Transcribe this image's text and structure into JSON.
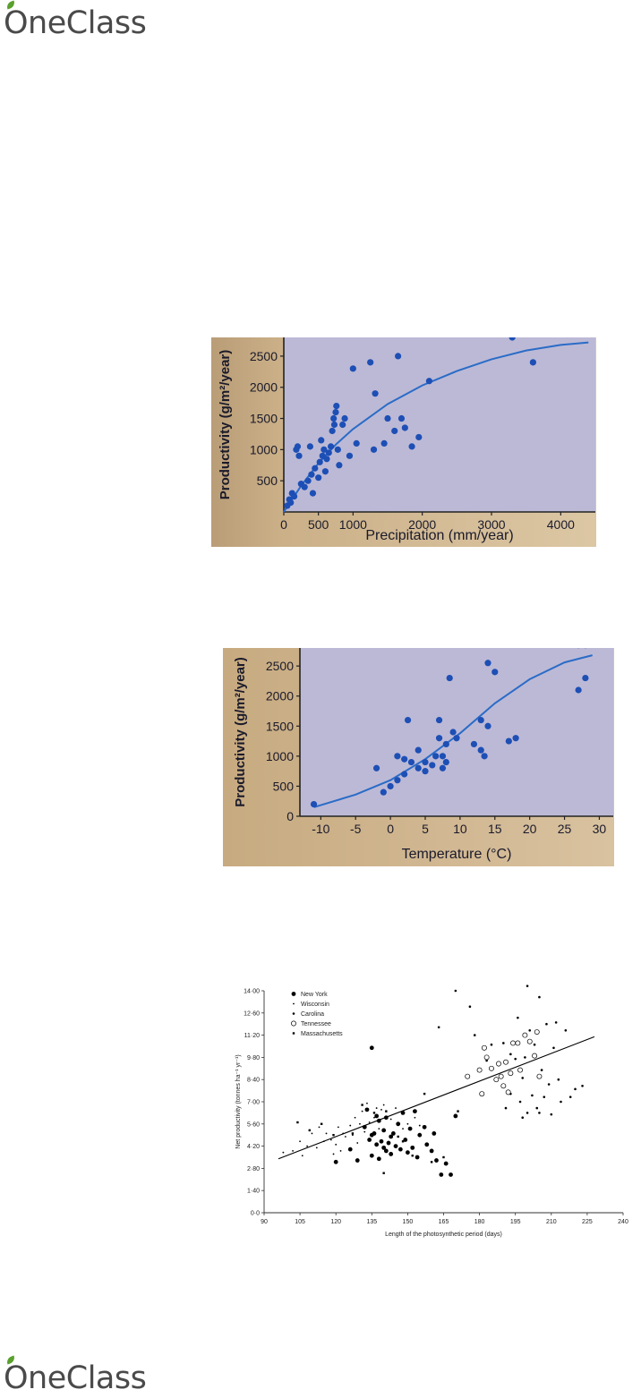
{
  "brand": {
    "name": "OneClass",
    "leaf_color": "#5aa02c",
    "text_color": "#4a4a4a"
  },
  "chart_data": [
    {
      "type": "scatter",
      "title": "",
      "xlabel": "Precipitation (mm/year)",
      "ylabel": "Productivity (g/m²/year)",
      "xlim": [
        0,
        4500
      ],
      "ylim": [
        0,
        2800
      ],
      "xticks": [
        0,
        500,
        1000,
        2000,
        3000,
        4000
      ],
      "yticks": [
        500,
        1000,
        1500,
        2000,
        2500
      ],
      "grid": false,
      "plot_bg": "#bcb9d6",
      "point_color": "#1d4fb5",
      "line_color": "#2a6cc7",
      "points": [
        [
          50,
          100
        ],
        [
          80,
          200
        ],
        [
          100,
          150
        ],
        [
          120,
          300
        ],
        [
          150,
          250
        ],
        [
          180,
          1000
        ],
        [
          200,
          1050
        ],
        [
          220,
          900
        ],
        [
          250,
          450
        ],
        [
          300,
          400
        ],
        [
          350,
          500
        ],
        [
          380,
          1050
        ],
        [
          400,
          600
        ],
        [
          420,
          300
        ],
        [
          450,
          700
        ],
        [
          500,
          550
        ],
        [
          520,
          800
        ],
        [
          540,
          1150
        ],
        [
          560,
          900
        ],
        [
          580,
          1000
        ],
        [
          600,
          650
        ],
        [
          620,
          850
        ],
        [
          650,
          950
        ],
        [
          680,
          1050
        ],
        [
          700,
          1300
        ],
        [
          720,
          1500
        ],
        [
          730,
          1400
        ],
        [
          750,
          1600
        ],
        [
          760,
          1700
        ],
        [
          780,
          1000
        ],
        [
          800,
          750
        ],
        [
          850,
          1400
        ],
        [
          880,
          1500
        ],
        [
          950,
          900
        ],
        [
          1000,
          2300
        ],
        [
          1050,
          1100
        ],
        [
          1250,
          2400
        ],
        [
          1300,
          1000
        ],
        [
          1320,
          1900
        ],
        [
          1450,
          1100
        ],
        [
          1500,
          1500
        ],
        [
          1600,
          1300
        ],
        [
          1650,
          2500
        ],
        [
          1700,
          1500
        ],
        [
          1750,
          1350
        ],
        [
          1850,
          1050
        ],
        [
          1950,
          1200
        ],
        [
          2100,
          2100
        ],
        [
          3300,
          2800
        ],
        [
          3600,
          2400
        ]
      ],
      "fit": [
        [
          0,
          0
        ],
        [
          250,
          420
        ],
        [
          500,
          780
        ],
        [
          750,
          1080
        ],
        [
          1000,
          1330
        ],
        [
          1500,
          1730
        ],
        [
          2000,
          2030
        ],
        [
          2500,
          2260
        ],
        [
          3000,
          2450
        ],
        [
          3500,
          2590
        ],
        [
          4000,
          2680
        ],
        [
          4400,
          2720
        ]
      ]
    },
    {
      "type": "scatter",
      "title": "",
      "xlabel": "Temperature (°C)",
      "ylabel": "Productivity (g/m²/year)",
      "xlim": [
        -13,
        32
      ],
      "ylim": [
        0,
        2800
      ],
      "xticks": [
        -10,
        -5,
        0,
        5,
        10,
        15,
        20,
        25,
        30
      ],
      "yticks": [
        0,
        500,
        1000,
        1500,
        2000,
        2500
      ],
      "grid": false,
      "plot_bg": "#bcb9d6",
      "point_color": "#1d4fb5",
      "line_color": "#2a6cc7",
      "points": [
        [
          -11,
          200
        ],
        [
          -2,
          800
        ],
        [
          -1,
          400
        ],
        [
          0,
          500
        ],
        [
          1,
          600
        ],
        [
          1,
          1000
        ],
        [
          2,
          950
        ],
        [
          2,
          700
        ],
        [
          2.5,
          1600
        ],
        [
          3,
          900
        ],
        [
          4,
          1100
        ],
        [
          4,
          800
        ],
        [
          5,
          750
        ],
        [
          5,
          900
        ],
        [
          6,
          850
        ],
        [
          6.5,
          1000
        ],
        [
          7,
          1300
        ],
        [
          7,
          1600
        ],
        [
          7.5,
          1000
        ],
        [
          7.5,
          800
        ],
        [
          8,
          1200
        ],
        [
          8,
          900
        ],
        [
          8.5,
          2300
        ],
        [
          9,
          1400
        ],
        [
          9.5,
          1300
        ],
        [
          12,
          1200
        ],
        [
          13,
          1600
        ],
        [
          13,
          1100
        ],
        [
          13.5,
          1000
        ],
        [
          14,
          2550
        ],
        [
          14,
          1500
        ],
        [
          15,
          2400
        ],
        [
          17,
          1250
        ],
        [
          18,
          1300
        ],
        [
          27,
          2100
        ],
        [
          27,
          2850
        ],
        [
          28,
          2300
        ],
        [
          28,
          2850
        ]
      ],
      "fit": [
        [
          -11,
          150
        ],
        [
          -5,
          360
        ],
        [
          0,
          600
        ],
        [
          5,
          950
        ],
        [
          10,
          1380
        ],
        [
          15,
          1880
        ],
        [
          20,
          2280
        ],
        [
          25,
          2560
        ],
        [
          29,
          2680
        ]
      ]
    },
    {
      "type": "scatter",
      "title": "",
      "xlabel": "Length of the photosynthetic period (days)",
      "ylabel": "Net productivity (tonnes ha⁻¹ yr⁻¹)",
      "xlim": [
        90,
        240
      ],
      "ylim": [
        0,
        14
      ],
      "xticks": [
        "90",
        "105",
        "120",
        "135",
        "150",
        "165",
        "180",
        "195",
        "210",
        "225",
        "240"
      ],
      "yticks": [
        "0·0",
        "1·40",
        "2·80",
        "4·20",
        "5·60",
        "7·00",
        "8·40",
        "9·80",
        "11·20",
        "12·60",
        "14·00"
      ],
      "grid": false,
      "legend": {
        "position": "top-left"
      },
      "line_color": "#000000",
      "fit": [
        [
          96,
          3.4
        ],
        [
          228,
          11.1
        ]
      ],
      "series": [
        {
          "name": "New York",
          "marker": "big-dot",
          "points": [
            [
              132,
              5.4
            ],
            [
              134,
              4.6
            ],
            [
              135,
              4.9
            ],
            [
              135,
              3.6
            ],
            [
              136,
              5.0
            ],
            [
              137,
              4.3
            ],
            [
              137,
              6.1
            ],
            [
              138,
              3.4
            ],
            [
              138,
              5.8
            ],
            [
              139,
              4.5
            ],
            [
              140,
              4.1
            ],
            [
              140,
              5.2
            ],
            [
              141,
              3.9
            ],
            [
              141,
              6.0
            ],
            [
              142,
              4.4
            ],
            [
              143,
              4.8
            ],
            [
              143,
              3.7
            ],
            [
              144,
              5.0
            ],
            [
              145,
              4.2
            ],
            [
              146,
              5.6
            ],
            [
              147,
              4.0
            ],
            [
              148,
              6.3
            ],
            [
              149,
              4.6
            ],
            [
              150,
              3.8
            ],
            [
              151,
              5.3
            ],
            [
              152,
              4.1
            ],
            [
              153,
              6.4
            ],
            [
              154,
              3.5
            ],
            [
              155,
              4.9
            ],
            [
              157,
              5.4
            ],
            [
              158,
              4.3
            ],
            [
              160,
              3.9
            ],
            [
              161,
              5.0
            ],
            [
              162,
              3.3
            ],
            [
              164,
              2.4
            ],
            [
              166,
              3.1
            ],
            [
              168,
              2.4
            ],
            [
              170,
              6.1
            ],
            [
              135,
              10.4
            ],
            [
              129,
              3.3
            ],
            [
              133,
              6.5
            ],
            [
              126,
              4.0
            ],
            [
              120,
              3.2
            ]
          ]
        },
        {
          "name": "Wisconsin",
          "marker": "small-dot",
          "points": [
            [
              98,
              3.8
            ],
            [
              102,
              3.9
            ],
            [
              105,
              4.5
            ],
            [
              106,
              3.6
            ],
            [
              108,
              4.2
            ],
            [
              110,
              5.0
            ],
            [
              112,
              4.1
            ],
            [
              113,
              5.4
            ],
            [
              115,
              4.5
            ],
            [
              116,
              5.0
            ],
            [
              118,
              4.6
            ],
            [
              119,
              3.7
            ],
            [
              120,
              4.3
            ],
            [
              121,
              5.4
            ],
            [
              122,
              3.9
            ],
            [
              123,
              5.0
            ],
            [
              124,
              4.8
            ],
            [
              126,
              5.5
            ],
            [
              127,
              4.9
            ],
            [
              128,
              6.0
            ],
            [
              129,
              4.4
            ],
            [
              130,
              5.6
            ],
            [
              131,
              6.4
            ],
            [
              132,
              5.1
            ],
            [
              133,
              6.9
            ],
            [
              134,
              5.7
            ],
            [
              136,
              6.0
            ],
            [
              137,
              6.6
            ],
            [
              138,
              5.3
            ],
            [
              139,
              6.5
            ],
            [
              140,
              6.8
            ],
            [
              143,
              5.9
            ],
            [
              145,
              6.6
            ],
            [
              148,
              5.3
            ],
            [
              150,
              5.6
            ],
            [
              153,
              6.0
            ],
            [
              155,
              5.5
            ]
          ]
        },
        {
          "name": "Carolina",
          "marker": "dot",
          "points": [
            [
              163,
              11.7
            ],
            [
              170,
              14.0
            ],
            [
              176,
              13.0
            ],
            [
              178,
              11.2
            ],
            [
              183,
              9.6
            ],
            [
              185,
              10.6
            ],
            [
              188,
              9.3
            ],
            [
              190,
              10.7
            ],
            [
              193,
              10.0
            ],
            [
              195,
              9.7
            ],
            [
              196,
              12.3
            ],
            [
              197,
              7.0
            ],
            [
              198,
              8.5
            ],
            [
              199,
              9.8
            ],
            [
              200,
              14.3
            ],
            [
              201,
              11.5
            ],
            [
              202,
              7.4
            ],
            [
              203,
              10.6
            ],
            [
              204,
              6.6
            ],
            [
              205,
              13.6
            ],
            [
              206,
              9.0
            ],
            [
              207,
              7.3
            ],
            [
              208,
              11.9
            ],
            [
              209,
              8.1
            ],
            [
              210,
              6.2
            ],
            [
              211,
              10.4
            ],
            [
              212,
              12.0
            ],
            [
              213,
              8.4
            ],
            [
              214,
              7.0
            ],
            [
              216,
              11.5
            ],
            [
              218,
              7.3
            ],
            [
              220,
              7.8
            ],
            [
              223,
              8.0
            ],
            [
              200,
              6.3
            ],
            [
              198,
              6.0
            ],
            [
              193,
              7.5
            ],
            [
              191,
              6.6
            ],
            [
              205,
              6.3
            ]
          ]
        },
        {
          "name": "Tennessee",
          "marker": "open-circle",
          "points": [
            [
              175,
              8.6
            ],
            [
              180,
              9.0
            ],
            [
              181,
              7.5
            ],
            [
              182,
              10.4
            ],
            [
              183,
              9.8
            ],
            [
              185,
              9.1
            ],
            [
              187,
              8.4
            ],
            [
              188,
              9.4
            ],
            [
              189,
              8.6
            ],
            [
              190,
              8.0
            ],
            [
              191,
              9.5
            ],
            [
              192,
              7.6
            ],
            [
              193,
              8.8
            ],
            [
              194,
              10.7
            ],
            [
              196,
              10.7
            ],
            [
              197,
              9.0
            ],
            [
              199,
              11.2
            ],
            [
              201,
              10.8
            ],
            [
              203,
              9.9
            ],
            [
              204,
              11.4
            ],
            [
              205,
              8.6
            ]
          ]
        },
        {
          "name": "Massachusetts",
          "marker": "square",
          "points": [
            [
              104,
              5.7
            ],
            [
              109,
              5.2
            ],
            [
              114,
              5.6
            ],
            [
              119,
              4.9
            ],
            [
              127,
              5.0
            ],
            [
              131,
              6.8
            ],
            [
              136,
              6.3
            ],
            [
              141,
              6.4
            ],
            [
              146,
              4.8
            ],
            [
              148,
              4.5
            ],
            [
              152,
              3.6
            ],
            [
              157,
              7.5
            ],
            [
              160,
              3.2
            ],
            [
              165,
              3.5
            ],
            [
              171,
              6.4
            ],
            [
              140,
              2.5
            ]
          ]
        }
      ]
    }
  ]
}
